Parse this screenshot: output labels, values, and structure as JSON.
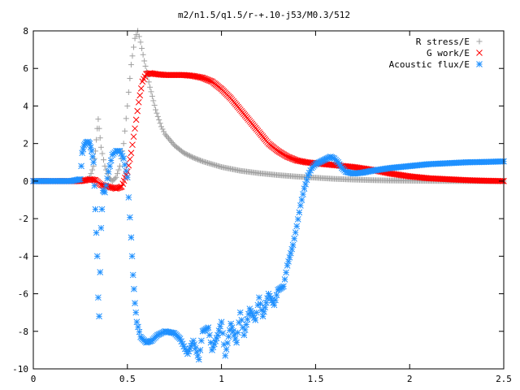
{
  "chart_data": {
    "type": "scatter",
    "title": "m2/n1.5/q1.5/r-+.10-j53/M0.3/512",
    "xlabel": "",
    "ylabel": "",
    "xlim": [
      0,
      2.5
    ],
    "ylim": [
      -10,
      8
    ],
    "grid": false,
    "legend_position": "top-right",
    "x_ticks": [
      {
        "value": 0,
        "label": "0"
      },
      {
        "value": 0.5,
        "label": "0.5"
      },
      {
        "value": 1,
        "label": "1"
      },
      {
        "value": 1.5,
        "label": "1.5"
      },
      {
        "value": 2,
        "label": "2"
      },
      {
        "value": 2.5,
        "label": "2.5"
      }
    ],
    "y_ticks": [
      {
        "value": -10,
        "label": "-10"
      },
      {
        "value": -8,
        "label": "-8"
      },
      {
        "value": -6,
        "label": "-6"
      },
      {
        "value": -4,
        "label": "-4"
      },
      {
        "value": -2,
        "label": "-2"
      },
      {
        "value": 0,
        "label": "0"
      },
      {
        "value": 2,
        "label": "2"
      },
      {
        "value": 4,
        "label": "4"
      },
      {
        "value": 6,
        "label": "6"
      },
      {
        "value": 8,
        "label": "8"
      }
    ],
    "series": [
      {
        "name": "R stress/E",
        "marker": "plus",
        "color": "#a0a0a0",
        "points": [
          [
            0.0,
            0.0
          ],
          [
            0.05,
            0.0
          ],
          [
            0.1,
            0.0
          ],
          [
            0.15,
            0.0
          ],
          [
            0.2,
            0.0
          ],
          [
            0.25,
            0.02
          ],
          [
            0.28,
            0.05
          ],
          [
            0.3,
            0.2
          ],
          [
            0.32,
            0.8
          ],
          [
            0.33,
            1.6
          ],
          [
            0.34,
            2.8
          ],
          [
            0.345,
            3.3
          ],
          [
            0.35,
            2.8
          ],
          [
            0.36,
            1.8
          ],
          [
            0.38,
            0.8
          ],
          [
            0.4,
            0.2
          ],
          [
            0.42,
            0.0
          ],
          [
            0.44,
            0.2
          ],
          [
            0.46,
            0.8
          ],
          [
            0.48,
            2.0
          ],
          [
            0.5,
            4.0
          ],
          [
            0.52,
            6.2
          ],
          [
            0.54,
            7.6
          ],
          [
            0.555,
            8.0
          ],
          [
            0.57,
            7.4
          ],
          [
            0.59,
            6.4
          ],
          [
            0.62,
            5.0
          ],
          [
            0.65,
            3.8
          ],
          [
            0.68,
            2.9
          ],
          [
            0.7,
            2.5
          ],
          [
            0.75,
            1.9
          ],
          [
            0.8,
            1.5
          ],
          [
            0.85,
            1.25
          ],
          [
            0.9,
            1.05
          ],
          [
            1.0,
            0.75
          ],
          [
            1.1,
            0.55
          ],
          [
            1.2,
            0.42
          ],
          [
            1.3,
            0.32
          ],
          [
            1.4,
            0.24
          ],
          [
            1.5,
            0.18
          ],
          [
            1.6,
            0.12
          ],
          [
            1.7,
            0.08
          ],
          [
            1.8,
            0.05
          ],
          [
            1.9,
            0.03
          ],
          [
            2.0,
            0.02
          ],
          [
            2.1,
            0.01
          ],
          [
            2.3,
            0.0
          ],
          [
            2.5,
            0.0
          ]
        ]
      },
      {
        "name": "G work/E",
        "marker": "cross",
        "color": "#ff0000",
        "points": [
          [
            0.0,
            0.0
          ],
          [
            0.1,
            0.0
          ],
          [
            0.2,
            0.0
          ],
          [
            0.25,
            0.0
          ],
          [
            0.28,
            0.05
          ],
          [
            0.3,
            0.1
          ],
          [
            0.33,
            0.05
          ],
          [
            0.36,
            -0.2
          ],
          [
            0.4,
            -0.3
          ],
          [
            0.44,
            -0.4
          ],
          [
            0.47,
            -0.3
          ],
          [
            0.5,
            0.5
          ],
          [
            0.52,
            1.5
          ],
          [
            0.54,
            2.8
          ],
          [
            0.56,
            4.2
          ],
          [
            0.58,
            5.3
          ],
          [
            0.6,
            5.7
          ],
          [
            0.62,
            5.75
          ],
          [
            0.65,
            5.7
          ],
          [
            0.7,
            5.65
          ],
          [
            0.75,
            5.65
          ],
          [
            0.8,
            5.65
          ],
          [
            0.85,
            5.6
          ],
          [
            0.9,
            5.5
          ],
          [
            0.95,
            5.3
          ],
          [
            1.0,
            4.9
          ],
          [
            1.05,
            4.4
          ],
          [
            1.1,
            3.8
          ],
          [
            1.15,
            3.2
          ],
          [
            1.2,
            2.6
          ],
          [
            1.25,
            2.0
          ],
          [
            1.3,
            1.6
          ],
          [
            1.35,
            1.3
          ],
          [
            1.4,
            1.1
          ],
          [
            1.45,
            1.0
          ],
          [
            1.5,
            0.95
          ],
          [
            1.55,
            0.9
          ],
          [
            1.6,
            0.85
          ],
          [
            1.7,
            0.75
          ],
          [
            1.8,
            0.6
          ],
          [
            1.9,
            0.4
          ],
          [
            2.0,
            0.25
          ],
          [
            2.1,
            0.15
          ],
          [
            2.2,
            0.1
          ],
          [
            2.3,
            0.05
          ],
          [
            2.4,
            0.02
          ],
          [
            2.5,
            0.0
          ]
        ]
      },
      {
        "name": "Acoustic flux/E",
        "marker": "star",
        "color": "#1f90ff",
        "points": [
          [
            0.0,
            0.0
          ],
          [
            0.05,
            0.0
          ],
          [
            0.1,
            0.0
          ],
          [
            0.15,
            0.0
          ],
          [
            0.2,
            0.0
          ],
          [
            0.25,
            0.1
          ],
          [
            0.26,
            1.5
          ],
          [
            0.27,
            1.9
          ],
          [
            0.28,
            2.05
          ],
          [
            0.29,
            2.1
          ],
          [
            0.3,
            2.0
          ],
          [
            0.31,
            1.6
          ],
          [
            0.32,
            1.0
          ],
          [
            0.33,
            -1.5
          ],
          [
            0.34,
            -4.0
          ],
          [
            0.345,
            -6.2
          ],
          [
            0.35,
            -7.2
          ],
          [
            0.36,
            -2.5
          ],
          [
            0.37,
            -0.5
          ],
          [
            0.38,
            -0.6
          ],
          [
            0.4,
            0.5
          ],
          [
            0.42,
            1.4
          ],
          [
            0.44,
            1.6
          ],
          [
            0.46,
            1.6
          ],
          [
            0.48,
            1.2
          ],
          [
            0.5,
            0.2
          ],
          [
            0.52,
            -3.0
          ],
          [
            0.53,
            -5.0
          ],
          [
            0.54,
            -6.5
          ],
          [
            0.55,
            -7.5
          ],
          [
            0.57,
            -8.3
          ],
          [
            0.6,
            -8.6
          ],
          [
            0.63,
            -8.5
          ],
          [
            0.66,
            -8.2
          ],
          [
            0.7,
            -8.0
          ],
          [
            0.75,
            -8.1
          ],
          [
            0.78,
            -8.4
          ],
          [
            0.8,
            -8.8
          ],
          [
            0.82,
            -9.2
          ],
          [
            0.85,
            -8.5
          ],
          [
            0.88,
            -9.5
          ],
          [
            0.9,
            -8.0
          ],
          [
            0.93,
            -7.8
          ],
          [
            0.95,
            -9.0
          ],
          [
            0.98,
            -8.2
          ],
          [
            1.0,
            -7.5
          ],
          [
            1.02,
            -9.3
          ],
          [
            1.05,
            -7.6
          ],
          [
            1.08,
            -8.6
          ],
          [
            1.1,
            -7.0
          ],
          [
            1.12,
            -8.2
          ],
          [
            1.15,
            -6.8
          ],
          [
            1.18,
            -7.4
          ],
          [
            1.2,
            -6.2
          ],
          [
            1.22,
            -7.2
          ],
          [
            1.25,
            -6.0
          ],
          [
            1.28,
            -6.6
          ],
          [
            1.3,
            -5.8
          ],
          [
            1.33,
            -5.6
          ],
          [
            1.35,
            -4.5
          ],
          [
            1.38,
            -3.4
          ],
          [
            1.4,
            -2.4
          ],
          [
            1.42,
            -1.3
          ],
          [
            1.44,
            -0.4
          ],
          [
            1.46,
            0.3
          ],
          [
            1.48,
            0.7
          ],
          [
            1.5,
            0.9
          ],
          [
            1.53,
            1.05
          ],
          [
            1.56,
            1.2
          ],
          [
            1.58,
            1.3
          ],
          [
            1.6,
            1.2
          ],
          [
            1.62,
            1.0
          ],
          [
            1.64,
            0.7
          ],
          [
            1.66,
            0.5
          ],
          [
            1.7,
            0.4
          ],
          [
            1.75,
            0.45
          ],
          [
            1.8,
            0.55
          ],
          [
            1.9,
            0.7
          ],
          [
            2.0,
            0.8
          ],
          [
            2.1,
            0.9
          ],
          [
            2.2,
            0.95
          ],
          [
            2.3,
            1.0
          ],
          [
            2.4,
            1.02
          ],
          [
            2.5,
            1.05
          ]
        ]
      }
    ]
  }
}
